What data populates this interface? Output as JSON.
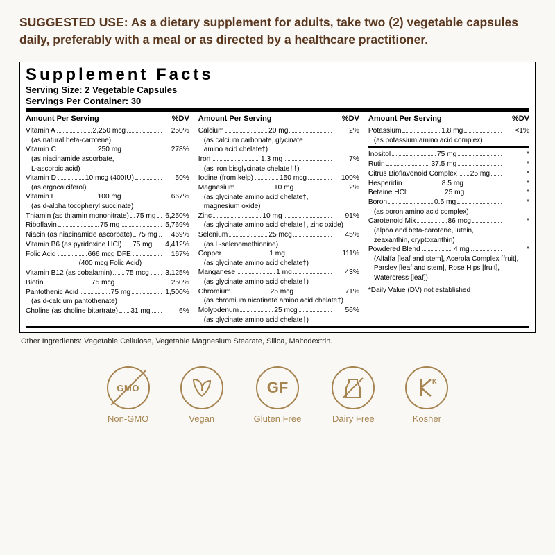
{
  "suggested": "SUGGESTED USE: As a dietary supplement for adults, take two (2) vegetable capsules daily, preferably with a meal or as directed by a healthcare practitioner.",
  "panel": {
    "title": "Supplement Facts",
    "serving_size": "Serving Size: 2 Vegetable Capsules",
    "servings_per": "Servings Per Container: 30",
    "col_header_left": "Amount Per Serving",
    "col_header_right": "%DV",
    "other_ingredients": "Other Ingredients: Vegetable Cellulose, Vegetable Magnesium Stearate, Silica, Maltodextrin.",
    "dv_note": "*Daily Value (DV) not established"
  },
  "col1": [
    {
      "n": "Vitamin A",
      "a": "2,250 mcg",
      "d": "250%",
      "s": [
        "(as natural beta-carotene)"
      ]
    },
    {
      "n": "Vitamin C",
      "a": "250 mg",
      "d": "278%",
      "s": [
        "(as niacinamide ascorbate,",
        "L-ascorbic acid)"
      ]
    },
    {
      "n": "Vitamin D",
      "a": "10 mcg (400IU)",
      "d": "50%",
      "s": [
        "(as ergocalciferol)"
      ]
    },
    {
      "n": "Vitamin E",
      "a": "100 mg",
      "d": "667%",
      "s": [
        "(as d-alpha tocopheryl succinate)"
      ]
    },
    {
      "n": "Thiamin (as thiamin mononitrate)",
      "a": "75 mg",
      "d": "6,250%"
    },
    {
      "n": "Riboflavin",
      "a": "75 mg",
      "d": "5,769%"
    },
    {
      "n": "Niacin (as niacinamide ascorbate)",
      "a": "75 mg",
      "d": "469%"
    },
    {
      "n": "Vitamin B6 (as pyridoxine HCl)",
      "a": "75 mg",
      "d": "4,412%"
    },
    {
      "n": "Folic Acid",
      "a": "666 mcg DFE",
      "d": "167%",
      "s2": "(400 mcg Folic Acid)"
    },
    {
      "n": "Vitamin B12 (as cobalamin)",
      "a": "75 mcg",
      "d": "3,125%"
    },
    {
      "n": "Biotin",
      "a": "75 mcg",
      "d": "250%"
    },
    {
      "n": "Pantothenic Acid",
      "a": "75 mg",
      "d": "1,500%",
      "s": [
        "(as d-calcium pantothenate)"
      ]
    },
    {
      "n": "Choline (as choline bitartrate)",
      "a": "31 mg",
      "d": "6%"
    }
  ],
  "col2": [
    {
      "n": "Calcium",
      "a": "20 mg",
      "d": "2%",
      "s": [
        "(as calcium carbonate, glycinate",
        "amino acid chelate†)"
      ]
    },
    {
      "n": "Iron",
      "a": "1.3 mg",
      "d": "7%",
      "s": [
        "(as iron bisglycinate chelate††)"
      ]
    },
    {
      "n": "Iodine (from kelp)",
      "a": "150 mcg",
      "d": "100%"
    },
    {
      "n": "Magnesium",
      "a": "10 mg",
      "d": "2%",
      "s": [
        "(as glycinate amino acid chelate†,",
        "magnesium oxide)"
      ]
    },
    {
      "n": "Zinc",
      "a": "10 mg",
      "d": "91%",
      "s": [
        "(as glycinate amino acid chelate†, zinc oxide)"
      ]
    },
    {
      "n": "Selenium",
      "a": "25 mcg",
      "d": "45%",
      "s": [
        "(as L-selenomethionine)"
      ]
    },
    {
      "n": "Copper",
      "a": "1 mg",
      "d": "111%",
      "s": [
        "(as glycinate amino acid chelate†)"
      ]
    },
    {
      "n": "Manganese",
      "a": "1 mg",
      "d": "43%",
      "s": [
        "(as glycinate amino acid chelate†)"
      ]
    },
    {
      "n": "Chromium",
      "a": "25 mcg",
      "d": "71%",
      "s": [
        "(as chromium nicotinate amino acid chelate†)"
      ]
    },
    {
      "n": "Molybdenum",
      "a": "25 mcg",
      "d": "56%",
      "s": [
        "(as glycinate amino acid chelate†)"
      ]
    }
  ],
  "col3a": [
    {
      "n": "Potassium",
      "a": "1.8 mg",
      "d": "<1%",
      "s": [
        "(as potassium amino acid complex)"
      ]
    }
  ],
  "col3b": [
    {
      "n": "Inositol",
      "a": "75 mg",
      "d": "*"
    },
    {
      "n": "Rutin",
      "a": "37.5 mg",
      "d": "*"
    },
    {
      "n": "Citrus Bioflavonoid Complex",
      "a": "25 mg",
      "d": "*"
    },
    {
      "n": "Hesperidin",
      "a": "8.5 mg",
      "d": "*"
    },
    {
      "n": "Betaine HCl",
      "a": "25 mg",
      "d": "*"
    },
    {
      "n": "Boron",
      "a": "0.5 mg",
      "d": "*",
      "s": [
        "(as boron amino acid complex)"
      ]
    },
    {
      "n": "Carotenoid Mix",
      "a": "86 mcg",
      "d": "*",
      "s": [
        "(alpha and beta-carotene, lutein,",
        "zeaxanthin, cryptoxanthin)"
      ]
    },
    {
      "n": "Powdered Blend",
      "a": "4 mg",
      "d": "*",
      "s": [
        "(Alfalfa [leaf and stem], Acerola Complex [fruit],",
        "Parsley [leaf and stem], Rose Hips [fruit],",
        "Watercress [leaf])"
      ]
    }
  ],
  "badges": [
    {
      "id": "non-gmo",
      "label": "Non-GMO"
    },
    {
      "id": "vegan",
      "label": "Vegan"
    },
    {
      "id": "gluten-free",
      "label": "Gluten Free"
    },
    {
      "id": "dairy-free",
      "label": "Dairy Free"
    },
    {
      "id": "kosher",
      "label": "Kosher"
    }
  ],
  "colors": {
    "accent": "#a68450",
    "text_brown": "#5a3820",
    "bg": "#faf8f5"
  }
}
